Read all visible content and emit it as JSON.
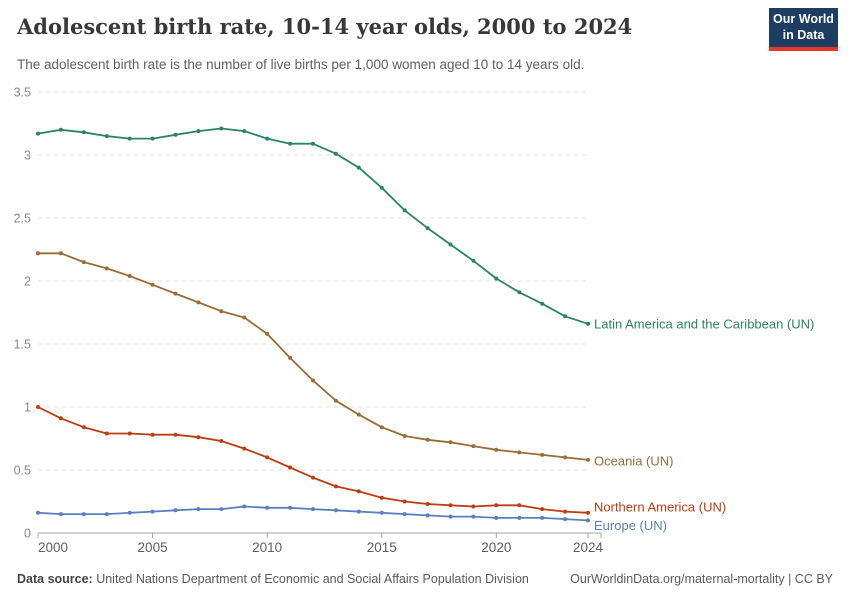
{
  "header": {
    "title": "Adolescent birth rate, 10-14 year olds, 2000 to 2024",
    "subtitle": "The adolescent birth rate is the number of live births per 1,000 women aged 10 to 14 years old.",
    "logo": {
      "line1": "Our World",
      "line2": "in Data",
      "bg": "#1d3d63",
      "accent": "#e7372c"
    }
  },
  "chart_data": {
    "type": "line",
    "title": "Adolescent birth rate, 10-14 year olds, 2000 to 2024",
    "xlabel": "",
    "ylabel": "live births per 1,000 women aged 10-14",
    "x": [
      2000,
      2001,
      2002,
      2003,
      2004,
      2005,
      2006,
      2007,
      2008,
      2009,
      2010,
      2011,
      2012,
      2013,
      2014,
      2015,
      2016,
      2017,
      2018,
      2019,
      2020,
      2021,
      2022,
      2023,
      2024
    ],
    "series": [
      {
        "name": "Latin America and the Caribbean (UN)",
        "color": "#2c8465",
        "label_dy": 0,
        "values": [
          3.17,
          3.2,
          3.18,
          3.15,
          3.13,
          3.13,
          3.16,
          3.19,
          3.21,
          3.19,
          3.13,
          3.09,
          3.09,
          3.01,
          2.9,
          2.74,
          2.56,
          2.42,
          2.29,
          2.16,
          2.02,
          1.91,
          1.82,
          1.72,
          1.66
        ]
      },
      {
        "name": "Oceania (UN)",
        "color": "#996d39",
        "label_dy": 1,
        "values": [
          2.22,
          2.22,
          2.15,
          2.1,
          2.04,
          1.97,
          1.9,
          1.83,
          1.76,
          1.71,
          1.58,
          1.39,
          1.21,
          1.05,
          0.94,
          0.84,
          0.77,
          0.74,
          0.72,
          0.69,
          0.66,
          0.64,
          0.62,
          0.6,
          0.58
        ]
      },
      {
        "name": "Northern America (UN)",
        "color": "#bc3d13",
        "label_dy": -6,
        "values": [
          1.0,
          0.91,
          0.84,
          0.79,
          0.79,
          0.78,
          0.78,
          0.76,
          0.73,
          0.67,
          0.6,
          0.52,
          0.44,
          0.37,
          0.33,
          0.28,
          0.25,
          0.23,
          0.22,
          0.21,
          0.22,
          0.22,
          0.19,
          0.17,
          0.16
        ]
      },
      {
        "name": "Europe (UN)",
        "color": "#5b7fbe",
        "label_dy": 5,
        "values": [
          0.16,
          0.15,
          0.15,
          0.15,
          0.16,
          0.17,
          0.18,
          0.19,
          0.19,
          0.21,
          0.2,
          0.2,
          0.19,
          0.18,
          0.17,
          0.16,
          0.15,
          0.14,
          0.13,
          0.13,
          0.12,
          0.12,
          0.12,
          0.11,
          0.1
        ]
      }
    ],
    "ylim": [
      0,
      3.5
    ],
    "yticks": [
      0,
      0.5,
      1,
      1.5,
      2,
      2.5,
      3,
      3.5
    ],
    "xticks": [
      2000,
      2005,
      2010,
      2015,
      2020,
      2024
    ],
    "grid": "horizontal-dashed",
    "legend_position": "end-of-line-labels",
    "colors": {
      "grid": "#dcdcdc",
      "axis": "#a5a5a5",
      "ytick_label": "#8a8a8a",
      "xtick_label": "#606060"
    }
  },
  "footer": {
    "source_label": "Data source:",
    "source_text": " United Nations Department of Economic and Social Affairs Population Division",
    "attribution": "OurWorldinData.org/maternal-mortality | CC BY"
  }
}
